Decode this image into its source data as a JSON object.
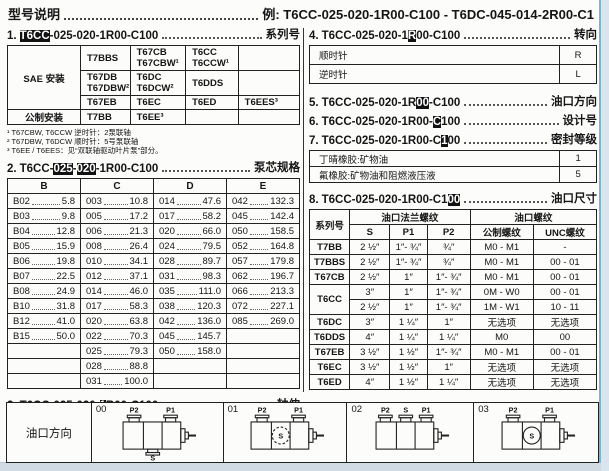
{
  "page": {
    "title_label": "型号说明",
    "title_example": "例: T6CC-025-020-1R00-C100 - T6DC-045-014-2R00-C1"
  },
  "sections": {
    "s1": {
      "num": "1.",
      "pre": "",
      "hl": "T6CC",
      "mid": "",
      "hl2": "",
      "post": "-025-020-1R00-C100",
      "label": "系列号"
    },
    "s2": {
      "num": "2.",
      "pre": "T6CC-",
      "hl": "025",
      "mid": "-",
      "hl2": "020",
      "post": "-1R00-C100",
      "label": "泵芯规格"
    },
    "s3": {
      "num": "3.",
      "pre": "T6CC-025-020-",
      "hl": "1",
      "mid": "",
      "hl2": "",
      "post": "R00-C100",
      "label": "轴伸"
    },
    "s4": {
      "num": "4.",
      "pre": "T6CC-025-020-1",
      "hl": "R",
      "mid": "",
      "hl2": "",
      "post": "00-C100",
      "label": "转向"
    },
    "s5": {
      "num": "5.",
      "pre": "T6CC-025-020-1R",
      "hl": "00",
      "mid": "",
      "hl2": "",
      "post": "-C100",
      "label": "油口方向"
    },
    "s6": {
      "num": "6.",
      "pre": "T6CC-025-020-1R00-",
      "hl": "C",
      "mid": "",
      "hl2": "",
      "post": "100",
      "label": "设计号"
    },
    "s7": {
      "num": "7.",
      "pre": "T6CC-025-020-1R00-C",
      "hl": "1",
      "mid": "",
      "hl2": "",
      "post": "00",
      "label": "密封等级"
    },
    "s8": {
      "num": "8.",
      "pre": "T6CC-025-020-1R00-C1",
      "hl": "00",
      "mid": "",
      "hl2": "",
      "post": "",
      "label": "油口尺寸"
    }
  },
  "series_table": {
    "sae_label": "SAE 安装",
    "metric_label": "公制安装",
    "rows": [
      [
        [
          "T7BBS"
        ],
        [
          "T67CB",
          "T67CBW¹"
        ],
        [
          "T6CC",
          "T6CCW¹"
        ],
        [
          ""
        ]
      ],
      [
        [
          "T67DB",
          "T67DBW²"
        ],
        [
          "T6DC",
          "T6DCW²"
        ],
        [
          "T6DDS"
        ],
        [
          ""
        ]
      ],
      [
        [
          "T67EB"
        ],
        [
          "T6EC"
        ],
        [
          "T6ED"
        ],
        [
          "T6EES³"
        ]
      ],
      [
        [
          "T7BB"
        ],
        [
          "T6EE³"
        ],
        [
          ""
        ],
        [
          ""
        ]
      ]
    ],
    "footnotes": [
      "¹ T67CBW, T6CCW 逆时针：2泵联轴",
      "² T67DBW, T6DCW 顺时针：5号泵联轴",
      "³ T6EE / T6EES：见“双联轴驱动叶片泵”部分。"
    ]
  },
  "pump_core_table": {
    "headers": [
      "B",
      "C",
      "D",
      "E"
    ],
    "rows": [
      [
        [
          "B02",
          "5.8"
        ],
        [
          "003",
          "10.8"
        ],
        [
          "014",
          "47.6"
        ],
        [
          "042",
          "132.3"
        ]
      ],
      [
        [
          "B03",
          "9.8"
        ],
        [
          "005",
          "17.2"
        ],
        [
          "017",
          "58.2"
        ],
        [
          "045",
          "142.4"
        ]
      ],
      [
        [
          "B04",
          "12.8"
        ],
        [
          "006",
          "21.3"
        ],
        [
          "020",
          "66.0"
        ],
        [
          "050",
          "158.5"
        ]
      ],
      [
        [
          "B05",
          "15.9"
        ],
        [
          "008",
          "26.4"
        ],
        [
          "024",
          "79.5"
        ],
        [
          "052",
          "164.8"
        ]
      ],
      [
        [
          "B06",
          "19.8"
        ],
        [
          "010",
          "34.1"
        ],
        [
          "028",
          "89.7"
        ],
        [
          "057",
          "179.8"
        ]
      ],
      [
        [
          "B07",
          "22.5"
        ],
        [
          "012",
          "37.1"
        ],
        [
          "031",
          "98.3"
        ],
        [
          "062",
          "196.7"
        ]
      ],
      [
        [
          "B08",
          "24.9"
        ],
        [
          "014",
          "46.0"
        ],
        [
          "035",
          "111.0"
        ],
        [
          "066",
          "213.3"
        ]
      ],
      [
        [
          "B10",
          "31.8"
        ],
        [
          "017",
          "58.3"
        ],
        [
          "038",
          "120.3"
        ],
        [
          "072",
          "227.1"
        ]
      ],
      [
        [
          "B12",
          "41.0"
        ],
        [
          "020",
          "63.8"
        ],
        [
          "042",
          "136.0"
        ],
        [
          "085",
          "269.0"
        ]
      ],
      [
        [
          "B15",
          "50.0"
        ],
        [
          "022",
          "70.3"
        ],
        [
          "045",
          "145.7"
        ],
        null
      ],
      [
        null,
        [
          "025",
          "79.3"
        ],
        [
          "050",
          "158.0"
        ],
        null
      ],
      [
        null,
        [
          "028",
          "88.8"
        ],
        null,
        null
      ],
      [
        null,
        [
          "031",
          "100.0"
        ],
        null,
        null
      ]
    ]
  },
  "rotation_table": {
    "rows": [
      {
        "label": "顺时针",
        "value": "R"
      },
      {
        "label": "逆时针",
        "value": "L"
      }
    ]
  },
  "seal_table": {
    "rows": [
      {
        "label": "丁晴橡胶:矿物油",
        "value": "1"
      },
      {
        "label": "氟橡胶:矿物油和阻燃液压液",
        "value": "5"
      }
    ]
  },
  "port_size_table": {
    "headers": {
      "series": "系列号",
      "flange_group": "油口法兰螺纹",
      "thread_group": "油口螺纹",
      "s": "S",
      "p1": "P1",
      "p2": "P2",
      "metric": "公制螺纹",
      "unc": "UNC螺纹"
    },
    "rows": [
      {
        "series": "T7BB",
        "s": "2 ½″",
        "p1": "1″- ¾″",
        "p2": "¾″",
        "metric": "M0 - M1",
        "unc": "-"
      },
      {
        "series": "T7BBS",
        "s": "2 ½″",
        "p1": "1″- ¾″",
        "p2": "¾″",
        "metric": "M0 - M1",
        "unc": "00 - 01"
      },
      {
        "series": "T67CB",
        "s": "2 ½″",
        "p1": "1″",
        "p2": "1″- ¾″",
        "metric": "M0 - M1",
        "unc": "00 - 01"
      },
      {
        "series": "T6CC",
        "s": "3″",
        "p1": "1″",
        "p2": "1″- ¾″",
        "metric": "0M - W0",
        "unc": "00 - 01"
      },
      {
        "series": "",
        "s": "2 ½″",
        "p1": "1″",
        "p2": "1″- ¾″",
        "metric": "1M - W1",
        "unc": "10 - 11"
      },
      {
        "series": "T6DC",
        "s": "3″",
        "p1": "1 ¼″",
        "p2": "1″",
        "metric": "无选项",
        "unc": "无选项"
      },
      {
        "series": "T6DDS",
        "s": "4″",
        "p1": "1 ¼″",
        "p2": "1 ¼″",
        "metric": "M0",
        "unc": "00"
      },
      {
        "series": "T67EB",
        "s": "3 ½″",
        "p1": "1 ½″",
        "p2": "1″- ¾″",
        "metric": "M0 - M1",
        "unc": "00 - 01"
      },
      {
        "series": "T6EC",
        "s": "3 ½″",
        "p1": "1 ½″",
        "p2": "1″",
        "metric": "无选项",
        "unc": "无选项"
      },
      {
        "series": "T6ED",
        "s": "4″",
        "p1": "1 ½″",
        "p2": "1 ¼″",
        "metric": "无选项",
        "unc": "无选项"
      }
    ]
  },
  "port_direction": {
    "label": "油口方向",
    "diagrams": [
      {
        "code": "00",
        "p2": "P2",
        "p1": "P1",
        "s": "S",
        "s_position": "bottom"
      },
      {
        "code": "01",
        "p2": "P2",
        "p1": "P1",
        "s": "S",
        "s_position": "far-side-dashed-circle"
      },
      {
        "code": "02",
        "p2": "P2",
        "p1": "P1",
        "s": "S",
        "s_position": "top"
      },
      {
        "code": "03",
        "p2": "P2",
        "p1": "P1",
        "s": "S",
        "s_position": "near-side-circle"
      }
    ]
  }
}
